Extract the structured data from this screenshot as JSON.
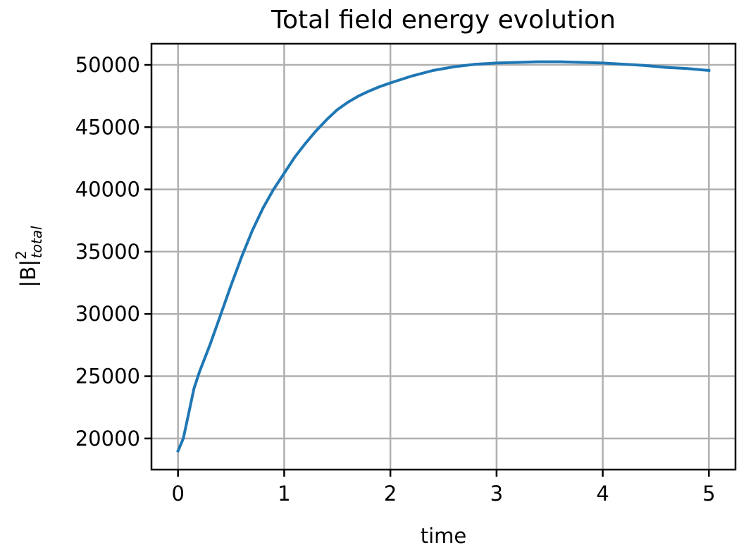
{
  "chart_data": {
    "type": "line",
    "title": "Total field energy evolution",
    "xlabel": "time",
    "ylabel": "|B|²total",
    "ylabel_parts": {
      "main": "|B|",
      "sup": "2",
      "sub": "total"
    },
    "xlim": [
      -0.25,
      5.25
    ],
    "ylim": [
      17500,
      51700
    ],
    "xticks": [
      0,
      1,
      2,
      3,
      4,
      5
    ],
    "yticks": [
      20000,
      25000,
      30000,
      35000,
      40000,
      45000,
      50000
    ],
    "xtick_labels": [
      "0",
      "1",
      "2",
      "3",
      "4",
      "5"
    ],
    "ytick_labels": [
      "20000",
      "25000",
      "30000",
      "35000",
      "40000",
      "45000",
      "50000"
    ],
    "grid": true,
    "series": [
      {
        "color": "#1f77b4",
        "x": [
          0,
          0.05,
          0.1,
          0.15,
          0.2,
          0.3,
          0.4,
          0.5,
          0.6,
          0.7,
          0.8,
          0.9,
          1.0,
          1.1,
          1.2,
          1.3,
          1.4,
          1.5,
          1.6,
          1.7,
          1.8,
          1.9,
          2.0,
          2.2,
          2.4,
          2.6,
          2.8,
          3.0,
          3.2,
          3.4,
          3.6,
          3.8,
          4.0,
          4.2,
          4.4,
          4.6,
          4.8,
          5.0
        ],
        "y": [
          19000,
          20000,
          22000,
          24000,
          25300,
          27500,
          29900,
          32300,
          34600,
          36700,
          38500,
          40000,
          41300,
          42600,
          43700,
          44700,
          45600,
          46400,
          47000,
          47500,
          47900,
          48250,
          48550,
          49100,
          49550,
          49850,
          50050,
          50150,
          50200,
          50250,
          50250,
          50200,
          50150,
          50050,
          49950,
          49800,
          49700,
          49550
        ]
      }
    ]
  }
}
